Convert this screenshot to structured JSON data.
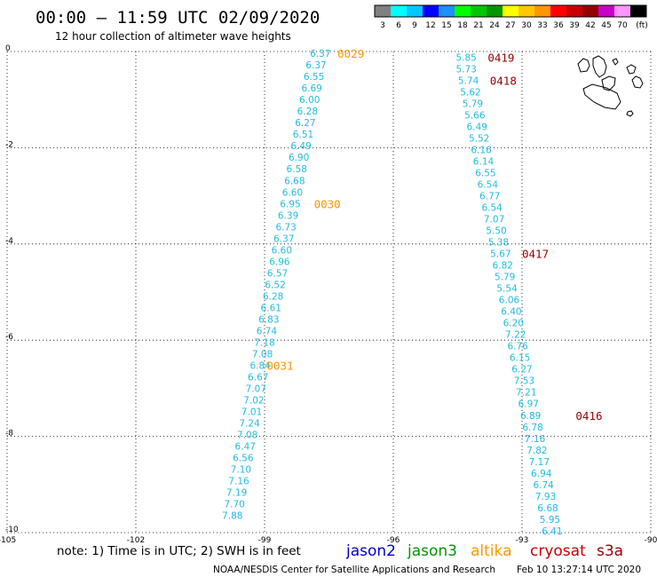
{
  "header": {
    "title": "00:00 – 11:59 UTC 02/09/2020",
    "subtitle": "12 hour collection of altimeter wave heights"
  },
  "color_scale": {
    "colors": [
      "#808080",
      "#00ffff",
      "#00c8ff",
      "#0000ff",
      "#1e90ff",
      "#00ff00",
      "#00c800",
      "#009600",
      "#ffff00",
      "#ffc800",
      "#ff9600",
      "#ff0000",
      "#c80000",
      "#960000",
      "#c800c8",
      "#ff96ff",
      "#000000"
    ],
    "labels": [
      "3",
      "6",
      "9",
      "12",
      "15",
      "18",
      "21",
      "24",
      "27",
      "30",
      "33",
      "36",
      "39",
      "42",
      "45",
      "70",
      "(ft)"
    ]
  },
  "footer": {
    "note": "note: 1) Time is in UTC; 2) SWH is in feet",
    "credit": "NOAA/NESDIS Center for Satellite Applications and Research",
    "timestamp": "Feb 10 13:27:14 UTC 2020"
  },
  "legend": [
    {
      "label": "jason2",
      "color": "#0000cc"
    },
    {
      "label": "jason3",
      "color": "#009600"
    },
    {
      "label": "altika",
      "color": "#ff9600"
    },
    {
      "label": "cryosat",
      "color": "#c80000"
    },
    {
      "label": "s3a",
      "color": "#960000"
    }
  ],
  "chart_data": {
    "type": "scatter",
    "xlim": [
      -105,
      -90
    ],
    "ylim": [
      -10,
      0
    ],
    "x_ticks": [
      "-105",
      "-102",
      "-99",
      "-96",
      "-93",
      "-90"
    ],
    "y_ticks": [
      "0",
      "-2",
      "-4",
      "-6",
      "-8",
      "-10"
    ],
    "grid": true,
    "point_color": "#22bbe0",
    "series": [
      {
        "track": "altika",
        "points": [
          {
            "lon": -97.7,
            "lat": -0.04,
            "v": "6.37"
          },
          {
            "lon": -97.8,
            "lat": -0.28,
            "v": "6.37"
          },
          {
            "lon": -97.85,
            "lat": -0.52,
            "v": "6.55"
          },
          {
            "lon": -97.9,
            "lat": -0.76,
            "v": "6.69"
          },
          {
            "lon": -97.95,
            "lat": -1.0,
            "v": "6.00"
          },
          {
            "lon": -98.0,
            "lat": -1.24,
            "v": "6.28"
          },
          {
            "lon": -98.05,
            "lat": -1.48,
            "v": "6.27"
          },
          {
            "lon": -98.1,
            "lat": -1.72,
            "v": "6.51"
          },
          {
            "lon": -98.15,
            "lat": -1.96,
            "v": "6.49"
          },
          {
            "lon": -98.2,
            "lat": -2.2,
            "v": "6.90"
          },
          {
            "lon": -98.25,
            "lat": -2.44,
            "v": "6.58"
          },
          {
            "lon": -98.3,
            "lat": -2.68,
            "v": "6.68"
          },
          {
            "lon": -98.35,
            "lat": -2.92,
            "v": "6.60"
          },
          {
            "lon": -98.4,
            "lat": -3.16,
            "v": "6.95"
          },
          {
            "lon": -98.45,
            "lat": -3.4,
            "v": "6.39"
          },
          {
            "lon": -98.5,
            "lat": -3.64,
            "v": "6.73"
          },
          {
            "lon": -98.55,
            "lat": -3.88,
            "v": "6.37"
          },
          {
            "lon": -98.6,
            "lat": -4.12,
            "v": "6.60"
          },
          {
            "lon": -98.65,
            "lat": -4.36,
            "v": "6.96"
          },
          {
            "lon": -98.7,
            "lat": -4.6,
            "v": "6.57"
          },
          {
            "lon": -98.75,
            "lat": -4.84,
            "v": "6.52"
          },
          {
            "lon": -98.8,
            "lat": -5.08,
            "v": "6.28"
          },
          {
            "lon": -98.85,
            "lat": -5.32,
            "v": "6.61"
          },
          {
            "lon": -98.9,
            "lat": -5.56,
            "v": "6.83"
          },
          {
            "lon": -98.95,
            "lat": -5.8,
            "v": "6.74"
          },
          {
            "lon": -99.0,
            "lat": -6.04,
            "v": "7.18"
          },
          {
            "lon": -99.05,
            "lat": -6.28,
            "v": "7.08"
          },
          {
            "lon": -99.1,
            "lat": -6.52,
            "v": "6.84"
          },
          {
            "lon": -99.15,
            "lat": -6.76,
            "v": "6.67"
          },
          {
            "lon": -99.2,
            "lat": -7.0,
            "v": "7.07"
          },
          {
            "lon": -99.25,
            "lat": -7.24,
            "v": "7.02"
          },
          {
            "lon": -99.3,
            "lat": -7.48,
            "v": "7.01"
          },
          {
            "lon": -99.35,
            "lat": -7.72,
            "v": "7.24"
          },
          {
            "lon": -99.4,
            "lat": -7.96,
            "v": "7.08"
          },
          {
            "lon": -99.45,
            "lat": -8.2,
            "v": "6.47"
          },
          {
            "lon": -99.5,
            "lat": -8.44,
            "v": "6.56"
          },
          {
            "lon": -99.55,
            "lat": -8.68,
            "v": "7.10"
          },
          {
            "lon": -99.6,
            "lat": -8.92,
            "v": "7.16"
          },
          {
            "lon": -99.65,
            "lat": -9.16,
            "v": "7.19"
          },
          {
            "lon": -99.7,
            "lat": -9.4,
            "v": "7.70"
          },
          {
            "lon": -99.75,
            "lat": -9.64,
            "v": "7.88"
          }
        ],
        "time_labels": [
          {
            "text": "0029",
            "lon": -97.3,
            "lat": -0.04
          },
          {
            "text": "0030",
            "lon": -97.85,
            "lat": -3.16
          },
          {
            "text": "0031",
            "lon": -98.95,
            "lat": -6.52
          }
        ]
      },
      {
        "track": "s3a",
        "points": [
          {
            "lon": -94.3,
            "lat": -0.12,
            "v": "5.85"
          },
          {
            "lon": -94.3,
            "lat": -0.36,
            "v": "5.73"
          },
          {
            "lon": -94.25,
            "lat": -0.6,
            "v": "5.74"
          },
          {
            "lon": -94.2,
            "lat": -0.84,
            "v": "5.62"
          },
          {
            "lon": -94.15,
            "lat": -1.08,
            "v": "5.79"
          },
          {
            "lon": -94.1,
            "lat": -1.32,
            "v": "5.66"
          },
          {
            "lon": -94.05,
            "lat": -1.56,
            "v": "6.49"
          },
          {
            "lon": -94.0,
            "lat": -1.8,
            "v": "5.52"
          },
          {
            "lon": -93.95,
            "lat": -2.04,
            "v": "6.16"
          },
          {
            "lon": -93.9,
            "lat": -2.28,
            "v": "6.14"
          },
          {
            "lon": -93.85,
            "lat": -2.52,
            "v": "6.55"
          },
          {
            "lon": -93.8,
            "lat": -2.76,
            "v": "6.54"
          },
          {
            "lon": -93.75,
            "lat": -3.0,
            "v": "6.77"
          },
          {
            "lon": -93.7,
            "lat": -3.24,
            "v": "6.54"
          },
          {
            "lon": -93.65,
            "lat": -3.48,
            "v": "7.07"
          },
          {
            "lon": -93.6,
            "lat": -3.72,
            "v": "5.50"
          },
          {
            "lon": -93.55,
            "lat": -3.96,
            "v": "5.38"
          },
          {
            "lon": -93.5,
            "lat": -4.2,
            "v": "5.67"
          },
          {
            "lon": -93.45,
            "lat": -4.44,
            "v": "6.82"
          },
          {
            "lon": -93.4,
            "lat": -4.68,
            "v": "5.79"
          },
          {
            "lon": -93.35,
            "lat": -4.92,
            "v": "5.54"
          },
          {
            "lon": -93.3,
            "lat": -5.16,
            "v": "6.06"
          },
          {
            "lon": -93.25,
            "lat": -5.4,
            "v": "6.40"
          },
          {
            "lon": -93.2,
            "lat": -5.64,
            "v": "6.20"
          },
          {
            "lon": -93.15,
            "lat": -5.88,
            "v": "7.22"
          },
          {
            "lon": -93.1,
            "lat": -6.12,
            "v": "6.76"
          },
          {
            "lon": -93.05,
            "lat": -6.36,
            "v": "6.15"
          },
          {
            "lon": -93.0,
            "lat": -6.6,
            "v": "6.27"
          },
          {
            "lon": -92.95,
            "lat": -6.84,
            "v": "7.53"
          },
          {
            "lon": -92.9,
            "lat": -7.08,
            "v": "7.21"
          },
          {
            "lon": -92.85,
            "lat": -7.32,
            "v": "6.97"
          },
          {
            "lon": -92.8,
            "lat": -7.56,
            "v": "6.89"
          },
          {
            "lon": -92.75,
            "lat": -7.8,
            "v": "6.78"
          },
          {
            "lon": -92.7,
            "lat": -8.04,
            "v": "7.16"
          },
          {
            "lon": -92.65,
            "lat": -8.28,
            "v": "7.82"
          },
          {
            "lon": -92.6,
            "lat": -8.52,
            "v": "7.17"
          },
          {
            "lon": -92.55,
            "lat": -8.76,
            "v": "6.94"
          },
          {
            "lon": -92.5,
            "lat": -9.0,
            "v": "6.74"
          },
          {
            "lon": -92.45,
            "lat": -9.24,
            "v": "7.93"
          },
          {
            "lon": -92.4,
            "lat": -9.48,
            "v": "6.68"
          },
          {
            "lon": -92.35,
            "lat": -9.72,
            "v": "5.95"
          },
          {
            "lon": -92.3,
            "lat": -9.96,
            "v": "6.41"
          }
        ],
        "time_labels": [
          {
            "text": "0419",
            "lon": -93.8,
            "lat": -0.12
          },
          {
            "text": "0418",
            "lon": -93.75,
            "lat": -0.6
          },
          {
            "text": "0417",
            "lon": -93.0,
            "lat": -4.2
          },
          {
            "text": "0416",
            "lon": -91.75,
            "lat": -7.56
          }
        ]
      }
    ]
  }
}
